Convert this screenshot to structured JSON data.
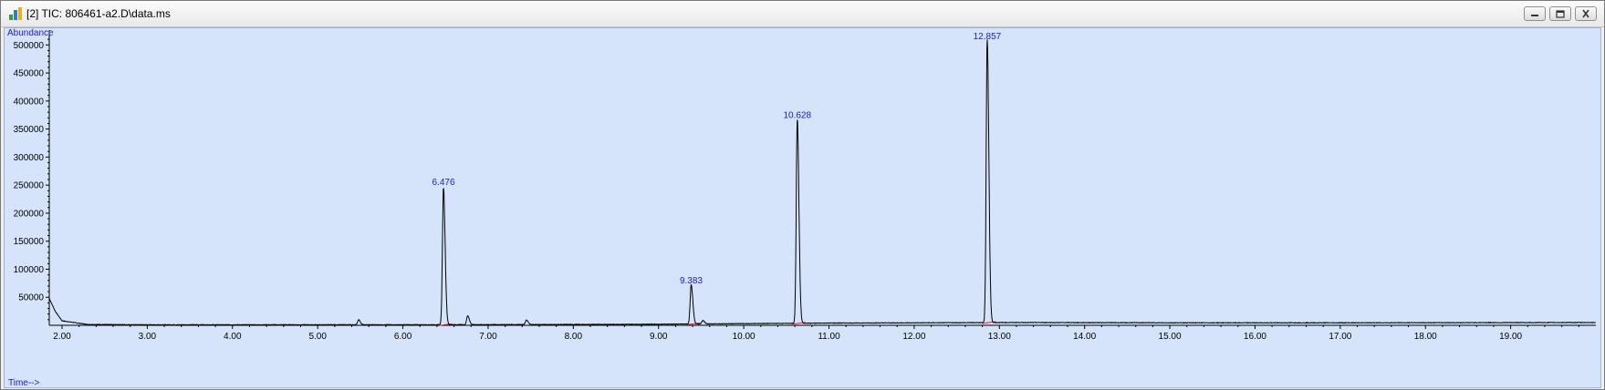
{
  "window": {
    "title": "[2] TIC: 806461-a2.D\\data.ms",
    "icon": "chromatogram-app-icon",
    "buttons": [
      "minimize-button",
      "restore-button",
      "close-button"
    ]
  },
  "colors": {
    "plot_background": "#d5e4fb",
    "trace": "#000000",
    "peak_label": "#1a1acc",
    "axis_label": "#1a1acc",
    "baseline_marker": "#e02020"
  },
  "chart_data": {
    "type": "line",
    "ylabel": "Abundance",
    "xlabel": "Time-->",
    "xlim": [
      1.85,
      20.0
    ],
    "ylim": [
      0,
      520000
    ],
    "x_ticks": [
      2.0,
      3.0,
      4.0,
      5.0,
      6.0,
      7.0,
      8.0,
      9.0,
      10.0,
      11.0,
      12.0,
      13.0,
      14.0,
      15.0,
      16.0,
      17.0,
      18.0,
      19.0
    ],
    "x_tick_labels": [
      "2.00",
      "3.00",
      "4.00",
      "5.00",
      "6.00",
      "7.00",
      "8.00",
      "9.00",
      "10.00",
      "11.00",
      "12.00",
      "13.00",
      "14.00",
      "15.00",
      "16.00",
      "17.00",
      "18.00",
      "19.00"
    ],
    "y_ticks": [
      50000,
      100000,
      150000,
      200000,
      250000,
      300000,
      350000,
      400000,
      450000,
      500000
    ],
    "y_tick_labels": [
      "50000",
      "100000",
      "150000",
      "200000",
      "250000",
      "300000",
      "350000",
      "400000",
      "450000",
      "500000"
    ],
    "peaks": [
      {
        "label": "6.476",
        "rt": 6.476,
        "height": 245000
      },
      {
        "label": "9.383",
        "rt": 9.383,
        "height": 70000
      },
      {
        "label": "10.628",
        "rt": 10.628,
        "height": 365000
      },
      {
        "label": "12.857",
        "rt": 12.857,
        "height": 505000
      }
    ],
    "minor_peaks": [
      {
        "rt": 5.48,
        "height": 9000
      },
      {
        "rt": 6.76,
        "height": 16000
      },
      {
        "rt": 7.45,
        "height": 8000
      },
      {
        "rt": 9.52,
        "height": 6000
      }
    ],
    "baseline": [
      {
        "x": 1.85,
        "y": 48000
      },
      {
        "x": 1.92,
        "y": 25000
      },
      {
        "x": 2.0,
        "y": 8000
      },
      {
        "x": 2.3,
        "y": 1500
      },
      {
        "x": 3.0,
        "y": 1000
      },
      {
        "x": 6.0,
        "y": 1000
      },
      {
        "x": 8.0,
        "y": 1500
      },
      {
        "x": 9.0,
        "y": 2000
      },
      {
        "x": 10.0,
        "y": 3000
      },
      {
        "x": 11.0,
        "y": 4000
      },
      {
        "x": 13.2,
        "y": 5000
      },
      {
        "x": 15.0,
        "y": 4500
      },
      {
        "x": 17.0,
        "y": 4500
      },
      {
        "x": 20.0,
        "y": 5000
      }
    ]
  }
}
